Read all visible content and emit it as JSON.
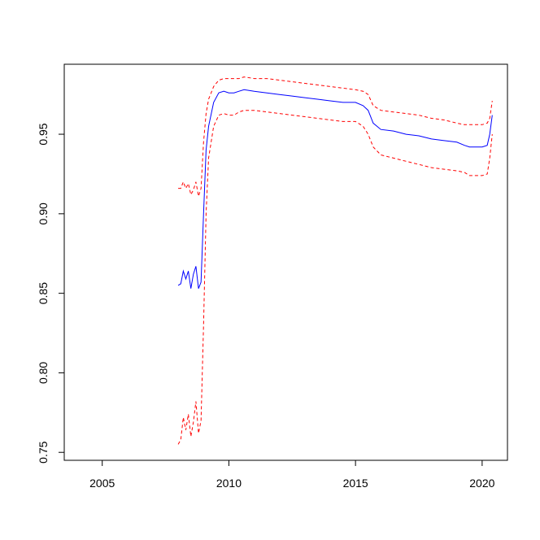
{
  "chart_data": {
    "type": "line",
    "title": "",
    "xlabel": "",
    "ylabel": "",
    "xlim": [
      2003.5,
      2021
    ],
    "ylim": [
      0.745,
      0.994
    ],
    "x_ticks": [
      2005,
      2010,
      2015,
      2020
    ],
    "x_tick_labels": [
      "2005",
      "2010",
      "2015",
      "2020"
    ],
    "y_ticks": [
      0.75,
      0.8,
      0.85,
      0.9,
      0.95
    ],
    "y_tick_labels": [
      "0.75",
      "0.80",
      "0.85",
      "0.90",
      "0.95"
    ],
    "grid": false,
    "legend": "none",
    "x": [
      2008.0,
      2008.1,
      2008.2,
      2008.3,
      2008.4,
      2008.5,
      2008.6,
      2008.7,
      2008.8,
      2008.9,
      2009.0,
      2009.1,
      2009.2,
      2009.4,
      2009.6,
      2009.8,
      2010.0,
      2010.2,
      2010.4,
      2010.6,
      2011.0,
      2011.5,
      2012.0,
      2012.5,
      2013.0,
      2013.5,
      2014.0,
      2014.5,
      2015.0,
      2015.3,
      2015.5,
      2015.7,
      2016.0,
      2016.5,
      2017.0,
      2017.5,
      2018.0,
      2018.5,
      2019.0,
      2019.3,
      2019.5,
      2020.0,
      2020.2,
      2020.3,
      2020.4
    ],
    "series": [
      {
        "color": "#0000ff",
        "dash": "solid",
        "values": [
          0.855,
          0.856,
          0.864,
          0.859,
          0.864,
          0.853,
          0.862,
          0.867,
          0.853,
          0.857,
          0.9,
          0.94,
          0.955,
          0.97,
          0.976,
          0.977,
          0.976,
          0.976,
          0.977,
          0.978,
          0.977,
          0.976,
          0.975,
          0.974,
          0.973,
          0.972,
          0.971,
          0.97,
          0.97,
          0.968,
          0.965,
          0.957,
          0.953,
          0.952,
          0.95,
          0.949,
          0.947,
          0.946,
          0.945,
          0.943,
          0.942,
          0.942,
          0.943,
          0.95,
          0.962
        ]
      },
      {
        "color": "#ff0000",
        "dash": "dashed",
        "values": [
          0.916,
          0.916,
          0.92,
          0.916,
          0.919,
          0.912,
          0.915,
          0.92,
          0.911,
          0.916,
          0.945,
          0.963,
          0.972,
          0.98,
          0.984,
          0.985,
          0.985,
          0.985,
          0.985,
          0.986,
          0.985,
          0.985,
          0.984,
          0.983,
          0.982,
          0.981,
          0.98,
          0.979,
          0.978,
          0.977,
          0.975,
          0.968,
          0.965,
          0.964,
          0.963,
          0.962,
          0.96,
          0.959,
          0.957,
          0.956,
          0.956,
          0.956,
          0.957,
          0.96,
          0.971
        ]
      },
      {
        "color": "#ff0000",
        "dash": "dashed",
        "values": [
          0.755,
          0.758,
          0.772,
          0.764,
          0.774,
          0.76,
          0.769,
          0.782,
          0.762,
          0.77,
          0.83,
          0.9,
          0.935,
          0.955,
          0.962,
          0.963,
          0.962,
          0.962,
          0.964,
          0.965,
          0.965,
          0.964,
          0.963,
          0.962,
          0.961,
          0.96,
          0.959,
          0.958,
          0.958,
          0.955,
          0.95,
          0.942,
          0.937,
          0.935,
          0.933,
          0.931,
          0.929,
          0.928,
          0.927,
          0.926,
          0.924,
          0.924,
          0.925,
          0.935,
          0.95
        ]
      }
    ]
  }
}
